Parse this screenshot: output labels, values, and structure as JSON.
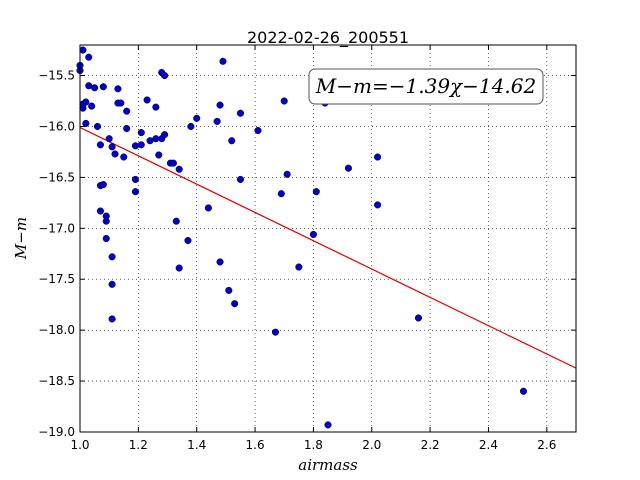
{
  "chart_data": {
    "type": "scatter",
    "title": "2022-02-26_200551",
    "xlabel": "airmass",
    "ylabel": "M−m",
    "xlim": [
      1.0,
      2.7
    ],
    "ylim": [
      -19.0,
      -15.2
    ],
    "y_inverted": true,
    "grid": true,
    "xticks": [
      "1.0",
      "1.2",
      "1.4",
      "1.6",
      "1.8",
      "2.0",
      "2.2",
      "2.4",
      "2.6"
    ],
    "yticks": [
      "−15.5",
      "−16.0",
      "−16.5",
      "−17.0",
      "−17.5",
      "−18.0",
      "−18.5",
      "−19.0"
    ],
    "annotation": "M−m=−1.39χ−14.62",
    "colors": {
      "points": "#0000cc",
      "fit_line": "#dd0000"
    },
    "fit": {
      "slope": -1.39,
      "intercept": -14.62
    },
    "points": [
      [
        1.0,
        -15.4
      ],
      [
        1.0,
        -15.45
      ],
      [
        1.01,
        -15.25
      ],
      [
        1.01,
        -15.78
      ],
      [
        1.01,
        -15.82
      ],
      [
        1.02,
        -15.76
      ],
      [
        1.02,
        -15.97
      ],
      [
        1.03,
        -15.32
      ],
      [
        1.03,
        -15.6
      ],
      [
        1.04,
        -15.8
      ],
      [
        1.05,
        -15.62
      ],
      [
        1.06,
        -16.0
      ],
      [
        1.07,
        -16.58
      ],
      [
        1.07,
        -16.18
      ],
      [
        1.07,
        -16.83
      ],
      [
        1.08,
        -15.61
      ],
      [
        1.08,
        -16.57
      ],
      [
        1.09,
        -16.88
      ],
      [
        1.09,
        -16.93
      ],
      [
        1.09,
        -17.1
      ],
      [
        1.1,
        -16.12
      ],
      [
        1.11,
        -16.2
      ],
      [
        1.11,
        -17.28
      ],
      [
        1.11,
        -17.55
      ],
      [
        1.11,
        -17.89
      ],
      [
        1.12,
        -16.27
      ],
      [
        1.13,
        -15.63
      ],
      [
        1.13,
        -15.77
      ],
      [
        1.14,
        -15.77
      ],
      [
        1.15,
        -16.3
      ],
      [
        1.16,
        -15.85
      ],
      [
        1.16,
        -16.02
      ],
      [
        1.19,
        -16.64
      ],
      [
        1.19,
        -16.52
      ],
      [
        1.19,
        -16.19
      ],
      [
        1.21,
        -16.18
      ],
      [
        1.21,
        -16.06
      ],
      [
        1.23,
        -15.74
      ],
      [
        1.24,
        -16.14
      ],
      [
        1.26,
        -15.81
      ],
      [
        1.26,
        -16.12
      ],
      [
        1.27,
        -16.28
      ],
      [
        1.28,
        -16.12
      ],
      [
        1.28,
        -15.47
      ],
      [
        1.29,
        -15.5
      ],
      [
        1.29,
        -16.08
      ],
      [
        1.31,
        -16.36
      ],
      [
        1.32,
        -16.36
      ],
      [
        1.33,
        -16.93
      ],
      [
        1.34,
        -16.42
      ],
      [
        1.34,
        -17.39
      ],
      [
        1.37,
        -17.12
      ],
      [
        1.38,
        -16.0
      ],
      [
        1.4,
        -15.92
      ],
      [
        1.44,
        -16.8
      ],
      [
        1.47,
        -15.95
      ],
      [
        1.48,
        -15.79
      ],
      [
        1.48,
        -17.33
      ],
      [
        1.49,
        -15.36
      ],
      [
        1.51,
        -17.61
      ],
      [
        1.52,
        -16.14
      ],
      [
        1.53,
        -17.74
      ],
      [
        1.55,
        -16.52
      ],
      [
        1.55,
        -15.87
      ],
      [
        1.61,
        -16.04
      ],
      [
        1.67,
        -18.02
      ],
      [
        1.69,
        -16.66
      ],
      [
        1.7,
        -15.75
      ],
      [
        1.71,
        -16.47
      ],
      [
        1.75,
        -17.38
      ],
      [
        1.8,
        -17.06
      ],
      [
        1.81,
        -16.64
      ],
      [
        1.84,
        -15.77
      ],
      [
        1.85,
        -18.93
      ],
      [
        1.92,
        -16.41
      ],
      [
        2.02,
        -16.77
      ],
      [
        2.02,
        -16.3
      ],
      [
        2.16,
        -17.88
      ],
      [
        2.52,
        -18.6
      ]
    ]
  }
}
